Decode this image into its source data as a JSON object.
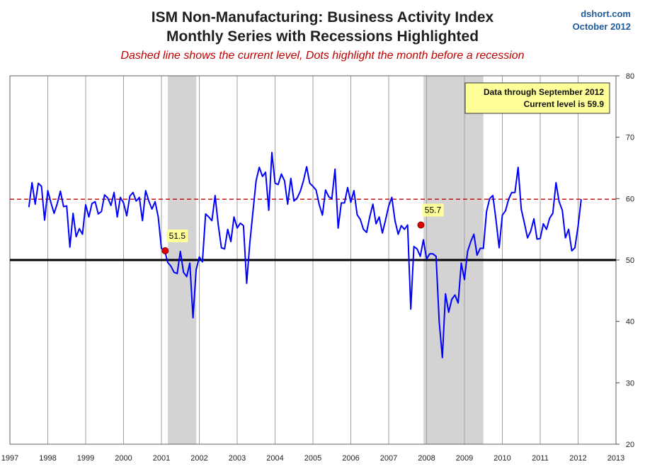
{
  "header": {
    "title_line1": "ISM Non-Manufacturing: Business Activity Index",
    "title_line2": "Monthly Series with Recessions Highlighted",
    "subtitle": "Dashed line shows the current level, Dots highlight the month before a recession",
    "source_name": "dshort.com",
    "source_date": "October 2012"
  },
  "info_box": {
    "line1": "Data through September 2012",
    "line2": "Current level is 59.9"
  },
  "colors": {
    "series": "#0000ff",
    "dashed": "#c00000",
    "recession": "#d3d3d3",
    "callout": "#ffff99",
    "dot": "#e00000"
  },
  "chart_data": {
    "type": "line",
    "xlim": [
      1997,
      2013
    ],
    "ylim": [
      20,
      80
    ],
    "x_ticks": [
      "1997",
      "1998",
      "1999",
      "2000",
      "2001",
      "2002",
      "2003",
      "2004",
      "2005",
      "2006",
      "2007",
      "2008",
      "2009",
      "2010",
      "2011",
      "2012",
      "2013"
    ],
    "y_ticks": [
      "20",
      "30",
      "40",
      "50",
      "60",
      "70",
      "80"
    ],
    "grid": "vertical",
    "current_level": 59.9,
    "reference_level": 50,
    "recessions": [
      [
        2001.17,
        2001.92
      ],
      [
        2007.92,
        2009.5
      ]
    ],
    "x_start": 1997.5,
    "x_step": 0.08333,
    "values": [
      58.6,
      62.6,
      59.1,
      62.5,
      62.0,
      56.5,
      61.3,
      59.3,
      57.6,
      59.2,
      61.2,
      58.7,
      58.8,
      52.1,
      57.6,
      53.8,
      55.1,
      54.2,
      59.0,
      57.0,
      59.2,
      59.5,
      57.5,
      57.9,
      60.6,
      60.1,
      58.9,
      61.0,
      57.0,
      60.2,
      59.3,
      57.2,
      60.4,
      61.0,
      59.6,
      60.2,
      56.4,
      61.3,
      59.6,
      58.3,
      59.5,
      57.0,
      51.9,
      51.6,
      49.6,
      49.0,
      48.0,
      47.8,
      51.4,
      48.0,
      47.3,
      49.5,
      40.6,
      48.4,
      50.5,
      49.7,
      57.5,
      57.0,
      56.4,
      60.5,
      55.8,
      52.0,
      51.8,
      55.0,
      53.0,
      57.0,
      55.2,
      56.0,
      55.6,
      46.2,
      52.7,
      57.9,
      62.9,
      65.1,
      63.6,
      64.3,
      58.1,
      67.5,
      62.5,
      62.3,
      64.0,
      62.9,
      59.1,
      63.3,
      59.6,
      60.1,
      61.2,
      62.9,
      65.2,
      62.5,
      62.0,
      61.4,
      59.0,
      57.3,
      61.4,
      60.3,
      60.0,
      64.8,
      55.2,
      59.3,
      59.3,
      61.8,
      59.4,
      61.3,
      57.4,
      56.6,
      55.0,
      54.5,
      57.0,
      59.1,
      55.9,
      57.0,
      54.4,
      56.5,
      58.8,
      60.2,
      56.4,
      54.2,
      55.6,
      55.0,
      55.7,
      42.0,
      52.2,
      51.8,
      50.6,
      53.3,
      50.2,
      51.0,
      51.0,
      50.6,
      40.0,
      34.1,
      44.5,
      41.5,
      43.6,
      44.3,
      43.0,
      49.5,
      46.8,
      51.4,
      53.0,
      54.2,
      50.8,
      51.9,
      51.9,
      57.9,
      60.0,
      60.5,
      56.5,
      52.0,
      57.3,
      58.0,
      59.9,
      61.0,
      61.0,
      65.1,
      58.3,
      56.0,
      53.6,
      54.7,
      56.7,
      53.4,
      53.5,
      55.9,
      55.0,
      56.8,
      57.6,
      62.6,
      59.5,
      58.1,
      53.6,
      55.0,
      51.5,
      52.0,
      55.5,
      59.9
    ],
    "callouts": [
      {
        "label": "51.5",
        "x": 2001.1,
        "y": 51.5
      },
      {
        "label": "55.7",
        "x": 2007.85,
        "y": 55.7
      }
    ]
  }
}
